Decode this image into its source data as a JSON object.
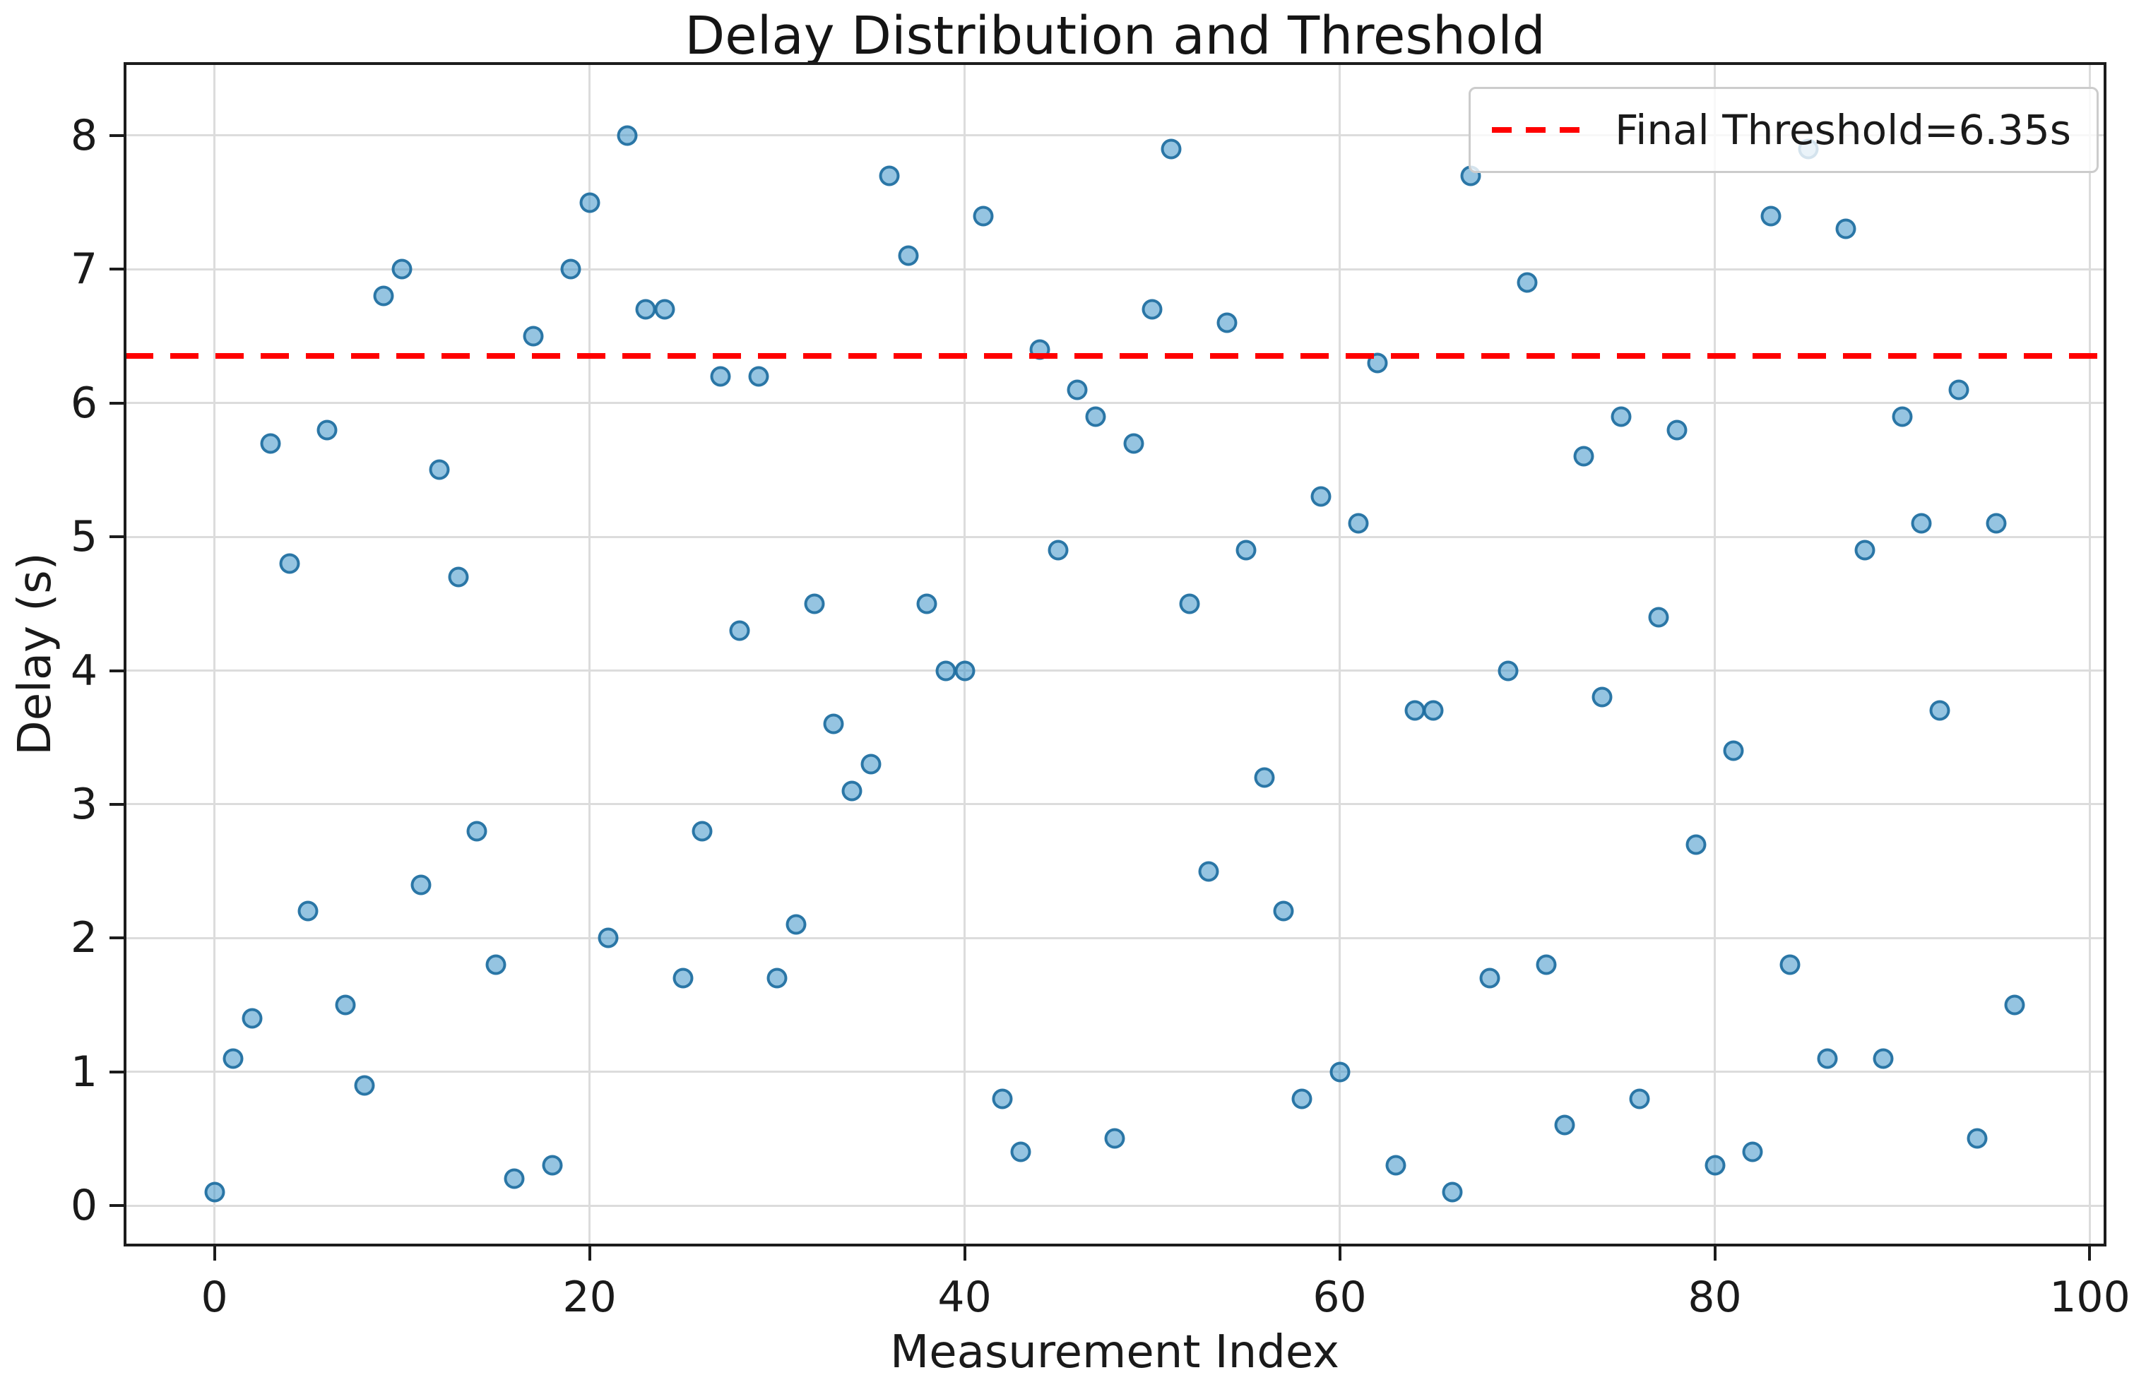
{
  "figure": {
    "title": "Delay Distribution and Threshold",
    "xlabel": "Measurement Index",
    "ylabel": "Delay (s)"
  },
  "legend": {
    "label": "Final Threshold=6.35s",
    "position": "upper right",
    "line_color": "#ff0000",
    "line_style": "dashed"
  },
  "chart_data": {
    "type": "scatter",
    "title": "Delay Distribution and Threshold",
    "xlabel": "Measurement Index",
    "ylabel": "Delay (s)",
    "grid": true,
    "legend_position": "upper right",
    "xlim": [
      -4.77,
      100.81
    ],
    "ylim": [
      -0.295,
      8.538
    ],
    "x_ticks": [
      0,
      20,
      40,
      60,
      80,
      100
    ],
    "x_tick_labels": [
      "0",
      "20",
      "40",
      "60",
      "80",
      "100"
    ],
    "y_ticks": [
      0,
      1,
      2,
      3,
      4,
      5,
      6,
      7,
      8
    ],
    "y_tick_labels": [
      "0",
      "1",
      "2",
      "3",
      "4",
      "5",
      "6",
      "7",
      "8"
    ],
    "x": [
      0,
      1,
      2,
      3,
      4,
      5,
      6,
      7,
      8,
      9,
      10,
      11,
      12,
      13,
      14,
      15,
      16,
      17,
      18,
      19,
      20,
      21,
      22,
      23,
      24,
      25,
      26,
      27,
      28,
      29,
      30,
      31,
      32,
      33,
      34,
      35,
      36,
      37,
      38,
      39,
      40,
      41,
      42,
      43,
      44,
      45,
      46,
      47,
      48,
      49,
      50,
      51,
      52,
      53,
      54,
      55,
      56,
      57,
      58,
      59,
      60,
      61,
      62,
      63,
      64,
      65,
      66,
      67,
      68,
      69,
      70,
      71,
      72,
      73,
      74,
      75,
      76,
      77,
      78,
      79,
      80,
      81,
      82,
      83,
      84,
      85,
      86,
      87,
      88,
      89,
      90,
      91,
      92,
      93,
      94,
      95,
      96
    ],
    "y": [
      0.1,
      1.1,
      1.4,
      5.7,
      4.8,
      2.2,
      5.8,
      1.5,
      0.9,
      6.8,
      7.0,
      2.4,
      5.5,
      4.7,
      2.8,
      1.8,
      0.2,
      6.5,
      0.3,
      7.0,
      7.5,
      2.0,
      8.0,
      6.7,
      6.7,
      1.7,
      2.8,
      6.2,
      4.3,
      6.2,
      1.7,
      2.1,
      4.5,
      3.6,
      3.1,
      3.3,
      7.7,
      7.1,
      4.5,
      4.0,
      4.0,
      7.4,
      0.8,
      0.4,
      6.4,
      4.9,
      6.1,
      5.9,
      0.5,
      5.7,
      6.7,
      7.9,
      4.5,
      2.5,
      6.6,
      4.9,
      3.2,
      2.2,
      0.8,
      5.3,
      1.0,
      5.1,
      6.3,
      0.3,
      3.7,
      3.7,
      0.1,
      7.7,
      1.7,
      4.0,
      6.9,
      1.8,
      0.6,
      5.6,
      3.8,
      5.9,
      0.8,
      4.4,
      5.8,
      2.7,
      0.3,
      3.4,
      0.4,
      7.4,
      1.8,
      7.9,
      1.1,
      7.3,
      4.9,
      1.1,
      5.9,
      5.1,
      3.7,
      6.1,
      0.5,
      5.1,
      1.5
    ],
    "threshold_line": {
      "y": 6.35,
      "label": "Final Threshold=6.35s",
      "color": "#ff0000",
      "style": "dashed"
    },
    "marker": {
      "fill_color": "rgba(62,148,200,0.55)",
      "edge_color": "#1f77b4"
    }
  }
}
